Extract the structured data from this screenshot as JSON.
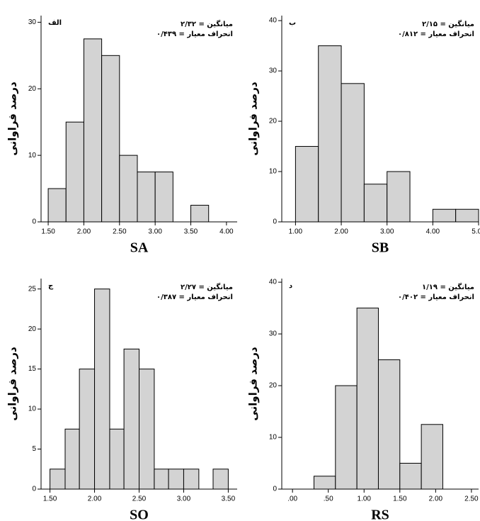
{
  "chart_data": [
    {
      "type": "histogram",
      "panel_label": "الف",
      "xlabel": "SA",
      "ylabel": "درصد فراوانی",
      "annotations": [
        "میانگین = ۲/۳۲",
        "انحراف معیار = ۰/۴۳۹"
      ],
      "bins": [
        1.5,
        1.75,
        2.0,
        2.25,
        2.5,
        2.75,
        3.0,
        3.25,
        3.5,
        3.75
      ],
      "values": [
        5,
        15,
        27.5,
        25,
        10,
        7.5,
        7.5,
        0,
        2.5
      ],
      "color": "#d3d3d3",
      "xlim": [
        1.4,
        4.15
      ],
      "xticks": [
        {
          "value": 1.5,
          "label": "1.50"
        },
        {
          "value": 2.0,
          "label": "2.00"
        },
        {
          "value": 2.5,
          "label": "2.50"
        },
        {
          "value": 3.0,
          "label": "3.00"
        },
        {
          "value": 3.5,
          "label": "3.50"
        },
        {
          "value": 4.0,
          "label": "4.00"
        }
      ],
      "ylim": [
        0,
        31
      ],
      "yticks": [
        0,
        10,
        20,
        30
      ]
    },
    {
      "type": "histogram",
      "panel_label": "ب",
      "xlabel": "SB",
      "ylabel": "درصد فراوانی",
      "annotations": [
        "میانگین = ۲/۱۵",
        "انحراف معیار = ۰/۸۱۲"
      ],
      "bins": [
        1.0,
        1.5,
        2.0,
        2.5,
        3.0,
        3.5,
        4.0,
        4.5,
        5.0
      ],
      "values": [
        15,
        35,
        27.5,
        7.5,
        10,
        0,
        2.5,
        2.5
      ],
      "color": "#d3d3d3",
      "xlim": [
        0.7,
        5.0
      ],
      "xticks": [
        {
          "value": 1.0,
          "label": "1.00"
        },
        {
          "value": 2.0,
          "label": "2.00"
        },
        {
          "value": 3.0,
          "label": "3.00"
        },
        {
          "value": 4.0,
          "label": "4.00"
        },
        {
          "value": 5.0,
          "label": "5.00"
        }
      ],
      "ylim": [
        0,
        41
      ],
      "yticks": [
        0,
        10,
        20,
        30,
        40
      ]
    },
    {
      "type": "histogram",
      "panel_label": "ج",
      "xlabel": "SO",
      "ylabel": "درصد فراوانی",
      "annotations": [
        "میانگین = ۲/۲۷",
        "انحراف معیار = ۰/۳۸۷"
      ],
      "bins": [
        1.5,
        1.67,
        1.83,
        2.0,
        2.17,
        2.33,
        2.5,
        2.67,
        2.83,
        3.0,
        3.17,
        3.33,
        3.5
      ],
      "values": [
        2.5,
        7.5,
        15,
        25,
        7.5,
        17.5,
        15,
        2.5,
        2.5,
        2.5,
        0,
        2.5
      ],
      "color": "#d3d3d3",
      "xlim": [
        1.4,
        3.6
      ],
      "xticks": [
        {
          "value": 1.5,
          "label": "1.50"
        },
        {
          "value": 2.0,
          "label": "2.00"
        },
        {
          "value": 2.5,
          "label": "2.50"
        },
        {
          "value": 3.0,
          "label": "3.00"
        },
        {
          "value": 3.5,
          "label": "3.50"
        }
      ],
      "ylim": [
        0,
        26.3
      ],
      "yticks": [
        0,
        5,
        10,
        15,
        20,
        25
      ]
    },
    {
      "type": "histogram",
      "panel_label": "د",
      "xlabel": "RS",
      "ylabel": "درصد فراوانی",
      "annotations": [
        "میانگین = ۱/۱۹",
        "انحراف معیار = ۰/۴۰۲"
      ],
      "bins": [
        0.3,
        0.6,
        0.9,
        1.2,
        1.5,
        1.8,
        2.1
      ],
      "values": [
        2.5,
        20,
        35,
        25,
        5,
        12.5
      ],
      "color": "#d3d3d3",
      "xlim": [
        -0.15,
        2.6
      ],
      "xticks": [
        {
          "value": 0,
          "label": ".00"
        },
        {
          "value": 0.5,
          "label": ".50"
        },
        {
          "value": 1.0,
          "label": "1.00"
        },
        {
          "value": 1.5,
          "label": "1.50"
        },
        {
          "value": 2.0,
          "label": "2.00"
        },
        {
          "value": 2.5,
          "label": "2.50"
        }
      ],
      "ylim": [
        0,
        40.7
      ],
      "yticks": [
        0,
        10,
        20,
        30,
        40
      ]
    }
  ]
}
